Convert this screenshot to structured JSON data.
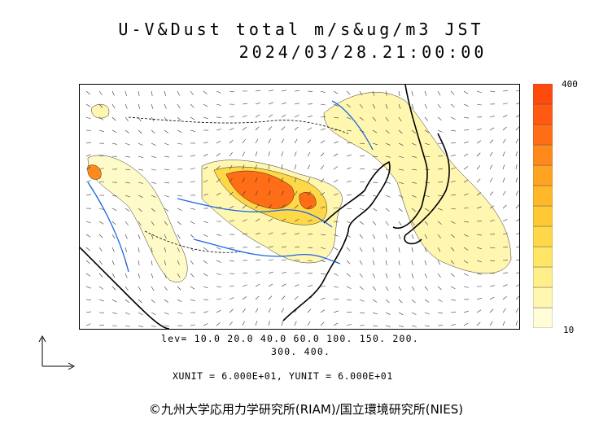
{
  "title": {
    "line1": "U-V&Dust total m/s&ug/m3 JST",
    "line2": "2024/03/28.21:00:00"
  },
  "colorbar": {
    "max_label": "400",
    "min_label": "10",
    "colors": [
      "#fffdd8",
      "#fff7b0",
      "#ffef8a",
      "#ffe466",
      "#ffd84a",
      "#ffc936",
      "#ffb82a",
      "#ffa322",
      "#ff8a1c",
      "#ff6e16",
      "#ff5a12",
      "#ff4a0e"
    ]
  },
  "levels": {
    "line1": "lev= 10.0 20.0 40.0 60.0 100. 150. 200.",
    "line2": "300. 400."
  },
  "units": {
    "text": "XUNIT = 6.000E+01, YUNIT = 6.000E+01"
  },
  "credit": {
    "text": "©九州大学応用力学研究所(RIAM)/国立環境研究所(NIES)"
  },
  "colors": {
    "coastline": "#000000",
    "rivers": "#1a64e6",
    "borders": "#000000",
    "dust_low": "#fffbc8",
    "dust_high": "#ff4a0e"
  }
}
